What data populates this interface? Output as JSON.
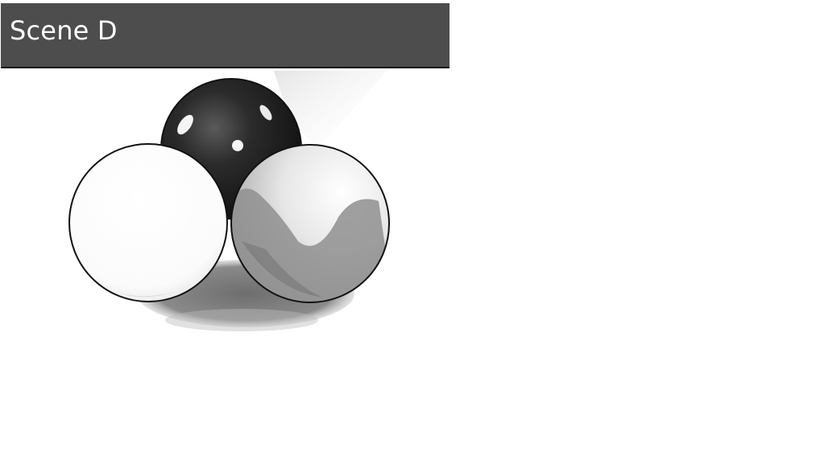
{
  "header": {
    "title": "Scene D"
  },
  "scene": {
    "subject": "three-sphere-molecule",
    "colors": {
      "header_bg": "#4d4d4d",
      "dark_sphere": "#1a1a1a",
      "light_sphere": "#f2f2f2",
      "shadow": "#7a7a7a",
      "outline": "#111111"
    }
  }
}
